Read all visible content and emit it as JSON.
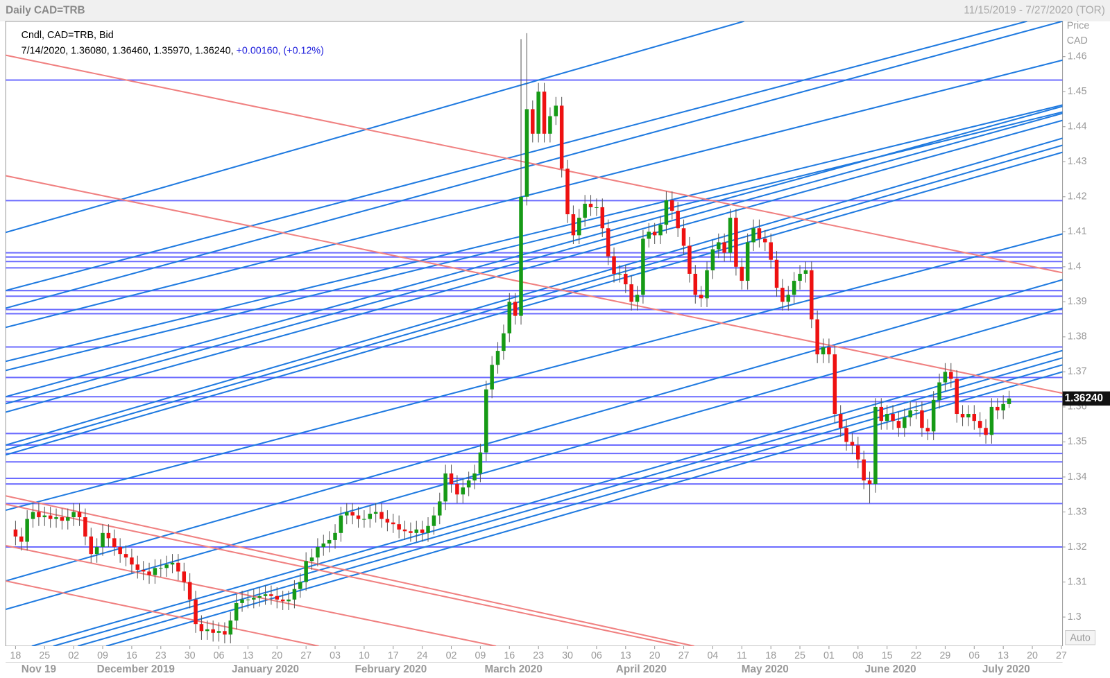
{
  "chart_data": {
    "type": "candlestick",
    "title": "Daily CAD=TRB",
    "date_range": "11/15/2019 - 7/27/2020 (TOR)",
    "info_line1": "Cndl, CAD=TRB, Bid",
    "info_ohlc": "7/14/2020, 1.36080, 1.36460, 1.35970, 1.36240,",
    "info_change": "+0.00160, (+0.12%)",
    "y_axis_title": "Price",
    "y_axis_unit": "CAD",
    "scale_button": "Auto",
    "up_color": "#169a16",
    "down_color": "#ee1111",
    "xlim": [
      -1.7,
      180.2
    ],
    "ylim": [
      1.2917,
      1.4701
    ],
    "yticks": [
      1.3,
      1.31,
      1.32,
      1.33,
      1.34,
      1.35,
      1.36,
      1.37,
      1.38,
      1.39,
      1.4,
      1.41,
      1.42,
      1.43,
      1.44,
      1.45,
      1.46
    ],
    "xticks": [
      {
        "value": 0,
        "label": "18"
      },
      {
        "value": 5,
        "label": "25"
      },
      {
        "value": 10,
        "label": "02"
      },
      {
        "value": 15,
        "label": "09"
      },
      {
        "value": 20,
        "label": "16"
      },
      {
        "value": 25,
        "label": "23"
      },
      {
        "value": 30,
        "label": "30"
      },
      {
        "value": 35,
        "label": "06"
      },
      {
        "value": 40,
        "label": "13"
      },
      {
        "value": 45,
        "label": "20"
      },
      {
        "value": 50,
        "label": "27"
      },
      {
        "value": 55,
        "label": "03"
      },
      {
        "value": 60,
        "label": "10"
      },
      {
        "value": 65,
        "label": "17"
      },
      {
        "value": 70,
        "label": "24"
      },
      {
        "value": 75,
        "label": "02"
      },
      {
        "value": 80,
        "label": "09"
      },
      {
        "value": 85,
        "label": "16"
      },
      {
        "value": 90,
        "label": "23"
      },
      {
        "value": 95,
        "label": "30"
      },
      {
        "value": 100,
        "label": "06"
      },
      {
        "value": 105,
        "label": "13"
      },
      {
        "value": 110,
        "label": "20"
      },
      {
        "value": 115,
        "label": "27"
      },
      {
        "value": 120,
        "label": "04"
      },
      {
        "value": 125,
        "label": "11"
      },
      {
        "value": 130,
        "label": "18"
      },
      {
        "value": 135,
        "label": "25"
      },
      {
        "value": 140,
        "label": "01"
      },
      {
        "value": 145,
        "label": "08"
      },
      {
        "value": 150,
        "label": "15"
      },
      {
        "value": 155,
        "label": "22"
      },
      {
        "value": 160,
        "label": "29"
      },
      {
        "value": 165,
        "label": "06"
      },
      {
        "value": 170,
        "label": "13"
      },
      {
        "value": 175,
        "label": "20"
      },
      {
        "value": 180,
        "label": "27"
      }
    ],
    "month_labels": [
      {
        "value": 4,
        "label": "Nov 19"
      },
      {
        "value": 20.7,
        "label": "December 2019"
      },
      {
        "value": 43,
        "label": "January 2020"
      },
      {
        "value": 64.6,
        "label": "February 2020"
      },
      {
        "value": 85.7,
        "label": "March 2020"
      },
      {
        "value": 107.7,
        "label": "April 2020"
      },
      {
        "value": 129,
        "label": "May 2020"
      },
      {
        "value": 150.6,
        "label": "June 2020"
      },
      {
        "value": 170.5,
        "label": "July 2020"
      }
    ],
    "last_price": {
      "value": 1.3624,
      "label": "1.36240"
    },
    "open": [
      1.325,
      1.323,
      1.3215,
      1.328,
      1.33,
      1.3285,
      1.329,
      1.328,
      1.3285,
      1.3275,
      1.3285,
      1.33,
      1.3285,
      1.323,
      1.318,
      1.32,
      1.324,
      1.3225,
      1.32,
      1.318,
      1.317,
      1.315,
      1.3135,
      1.313,
      1.312,
      1.314,
      1.314,
      1.315,
      1.3155,
      1.313,
      1.31,
      1.305,
      1.298,
      1.296,
      1.2965,
      1.2955,
      1.296,
      1.295,
      1.299,
      1.304,
      1.305,
      1.305,
      1.3055,
      1.306,
      1.3065,
      1.306,
      1.305,
      1.3045,
      1.305,
      1.308,
      1.31,
      1.316,
      1.317,
      1.32,
      1.321,
      1.322,
      1.324,
      1.329,
      1.33,
      1.329,
      1.328,
      1.328,
      1.3295,
      1.33,
      1.328,
      1.327,
      1.3265,
      1.325,
      1.3245,
      1.324,
      1.325,
      1.324,
      1.326,
      1.329,
      1.333,
      1.341,
      1.338,
      1.335,
      1.337,
      1.339,
      1.341,
      1.347,
      1.365,
      1.372,
      1.376,
      1.381,
      1.39,
      1.386,
      1.42,
      1.445,
      1.438,
      1.45,
      1.438,
      1.443,
      1.446,
      1.428,
      1.415,
      1.409,
      1.414,
      1.418,
      1.417,
      1.417,
      1.411,
      1.403,
      1.398,
      1.398,
      1.395,
      1.39,
      1.392,
      1.408,
      1.41,
      1.409,
      1.412,
      1.419,
      1.416,
      1.411,
      1.406,
      1.398,
      1.392,
      1.391,
      1.399,
      1.405,
      1.407,
      1.404,
      1.414,
      1.4,
      1.396,
      1.407,
      1.411,
      1.408,
      1.407,
      1.402,
      1.394,
      1.39,
      1.392,
      1.396,
      1.398,
      1.399,
      1.385,
      1.375,
      1.377,
      1.375,
      1.358,
      1.354,
      1.35,
      1.349,
      1.345,
      1.339,
      1.338,
      1.36,
      1.356,
      1.358,
      1.356,
      1.354,
      1.357,
      1.359,
      1.359,
      1.354,
      1.353,
      1.362,
      1.367,
      1.37,
      1.368,
      1.358,
      1.357,
      1.358,
      1.356,
      1.354,
      1.352,
      1.36,
      1.359,
      1.3608
    ],
    "high": [
      1.3275,
      1.3255,
      1.3305,
      1.3325,
      1.3325,
      1.3315,
      1.3315,
      1.331,
      1.331,
      1.331,
      1.3325,
      1.3325,
      1.331,
      1.3255,
      1.3225,
      1.3265,
      1.3265,
      1.325,
      1.3225,
      1.3205,
      1.3195,
      1.3175,
      1.316,
      1.3155,
      1.3165,
      1.3165,
      1.3175,
      1.318,
      1.318,
      1.3155,
      1.3125,
      1.3075,
      1.3005,
      1.299,
      1.299,
      1.2985,
      1.2985,
      1.3015,
      1.3065,
      1.3075,
      1.3075,
      1.308,
      1.3085,
      1.309,
      1.309,
      1.3085,
      1.3075,
      1.3075,
      1.3105,
      1.3125,
      1.3185,
      1.3195,
      1.3225,
      1.3235,
      1.3245,
      1.3265,
      1.3315,
      1.3325,
      1.3325,
      1.3315,
      1.3305,
      1.332,
      1.3325,
      1.3325,
      1.3305,
      1.3295,
      1.329,
      1.3275,
      1.327,
      1.3275,
      1.3275,
      1.3285,
      1.3315,
      1.3355,
      1.3435,
      1.3435,
      1.3405,
      1.3395,
      1.3415,
      1.3435,
      1.3495,
      1.3675,
      1.3745,
      1.3785,
      1.3835,
      1.3925,
      1.3925,
      1.465,
      1.4667,
      1.4475,
      1.4525,
      1.4525,
      1.4455,
      1.4485,
      1.4485,
      1.4305,
      1.4175,
      1.4165,
      1.4205,
      1.4205,
      1.4195,
      1.4195,
      1.4135,
      1.4055,
      1.4005,
      1.4005,
      1.3975,
      1.3945,
      1.4105,
      1.4125,
      1.4125,
      1.4145,
      1.4215,
      1.4215,
      1.4185,
      1.4135,
      1.4085,
      1.4005,
      1.3945,
      1.4015,
      1.4075,
      1.4095,
      1.4095,
      1.4165,
      1.4165,
      1.4025,
      1.4095,
      1.4135,
      1.4135,
      1.4105,
      1.4095,
      1.4045,
      1.3965,
      1.3945,
      1.3985,
      1.4005,
      1.4015,
      1.4015,
      1.3875,
      1.3795,
      1.3795,
      1.3775,
      1.3605,
      1.3565,
      1.3525,
      1.3515,
      1.3475,
      1.3415,
      1.3625,
      1.3625,
      1.3605,
      1.3605,
      1.3585,
      1.3595,
      1.3615,
      1.3615,
      1.3615,
      1.3565,
      1.3645,
      1.3695,
      1.3725,
      1.3725,
      1.3705,
      1.3605,
      1.3605,
      1.3605,
      1.3585,
      1.3565,
      1.3625,
      1.3625,
      1.3633,
      1.3646
    ],
    "low": [
      1.3205,
      1.319,
      1.319,
      1.3255,
      1.326,
      1.326,
      1.3255,
      1.3255,
      1.325,
      1.325,
      1.326,
      1.326,
      1.3205,
      1.3155,
      1.3155,
      1.3175,
      1.32,
      1.3175,
      1.3155,
      1.3145,
      1.3125,
      1.311,
      1.3105,
      1.3095,
      1.3095,
      1.3115,
      1.3115,
      1.3125,
      1.3105,
      1.3075,
      1.3025,
      1.2955,
      1.2935,
      1.2935,
      1.293,
      1.293,
      1.2925,
      1.2925,
      1.2965,
      1.3015,
      1.3025,
      1.3025,
      1.303,
      1.3035,
      1.3035,
      1.3025,
      1.302,
      1.302,
      1.3025,
      1.3055,
      1.3075,
      1.3135,
      1.3145,
      1.3175,
      1.3185,
      1.3195,
      1.3215,
      1.3265,
      1.3265,
      1.3255,
      1.3255,
      1.3255,
      1.327,
      1.3255,
      1.3245,
      1.324,
      1.3225,
      1.322,
      1.3215,
      1.3215,
      1.3215,
      1.3215,
      1.3235,
      1.3265,
      1.3305,
      1.3355,
      1.3325,
      1.3325,
      1.3345,
      1.3365,
      1.3385,
      1.3445,
      1.3625,
      1.3695,
      1.3735,
      1.3785,
      1.3835,
      1.3835,
      1.4175,
      1.4355,
      1.4355,
      1.4355,
      1.4355,
      1.4405,
      1.4255,
      1.4125,
      1.4065,
      1.4065,
      1.4115,
      1.4145,
      1.4145,
      1.4085,
      1.4005,
      1.3955,
      1.3955,
      1.3925,
      1.3875,
      1.3875,
      1.3895,
      1.4055,
      1.4065,
      1.4065,
      1.4095,
      1.4135,
      1.4085,
      1.4035,
      1.3955,
      1.3895,
      1.3885,
      1.3885,
      1.3965,
      1.4025,
      1.4015,
      1.4015,
      1.3975,
      1.3935,
      1.3935,
      1.4045,
      1.4055,
      1.4045,
      1.3995,
      1.3915,
      1.3875,
      1.3875,
      1.3895,
      1.3935,
      1.3955,
      1.3825,
      1.3725,
      1.3725,
      1.3725,
      1.3555,
      1.3515,
      1.3475,
      1.3465,
      1.3425,
      1.3365,
      1.3325,
      1.3355,
      1.3535,
      1.3535,
      1.3535,
      1.3515,
      1.3515,
      1.3545,
      1.3565,
      1.3515,
      1.3505,
      1.3505,
      1.3595,
      1.3645,
      1.3655,
      1.3555,
      1.3545,
      1.3545,
      1.3535,
      1.3515,
      1.3495,
      1.3495,
      1.3565,
      1.3565,
      1.3597
    ],
    "close": [
      1.323,
      1.3215,
      1.328,
      1.33,
      1.3285,
      1.329,
      1.328,
      1.3285,
      1.3275,
      1.3285,
      1.33,
      1.3285,
      1.323,
      1.318,
      1.32,
      1.324,
      1.3225,
      1.32,
      1.318,
      1.317,
      1.315,
      1.3135,
      1.313,
      1.312,
      1.314,
      1.314,
      1.315,
      1.3155,
      1.313,
      1.31,
      1.305,
      1.298,
      1.296,
      1.2965,
      1.2955,
      1.296,
      1.295,
      1.299,
      1.304,
      1.305,
      1.305,
      1.3055,
      1.306,
      1.3065,
      1.306,
      1.305,
      1.3045,
      1.305,
      1.308,
      1.31,
      1.316,
      1.317,
      1.32,
      1.321,
      1.322,
      1.324,
      1.329,
      1.33,
      1.329,
      1.328,
      1.328,
      1.3295,
      1.33,
      1.328,
      1.327,
      1.3265,
      1.325,
      1.3245,
      1.324,
      1.325,
      1.324,
      1.326,
      1.329,
      1.333,
      1.341,
      1.338,
      1.335,
      1.337,
      1.339,
      1.341,
      1.347,
      1.365,
      1.372,
      1.376,
      1.381,
      1.39,
      1.386,
      1.42,
      1.445,
      1.438,
      1.45,
      1.438,
      1.443,
      1.446,
      1.428,
      1.415,
      1.409,
      1.414,
      1.418,
      1.417,
      1.417,
      1.411,
      1.403,
      1.398,
      1.398,
      1.395,
      1.39,
      1.392,
      1.408,
      1.41,
      1.409,
      1.412,
      1.419,
      1.416,
      1.411,
      1.406,
      1.398,
      1.392,
      1.391,
      1.399,
      1.405,
      1.407,
      1.404,
      1.414,
      1.4,
      1.396,
      1.407,
      1.411,
      1.408,
      1.407,
      1.402,
      1.394,
      1.39,
      1.392,
      1.396,
      1.398,
      1.399,
      1.385,
      1.375,
      1.377,
      1.375,
      1.358,
      1.354,
      1.35,
      1.349,
      1.345,
      1.339,
      1.338,
      1.36,
      1.356,
      1.358,
      1.356,
      1.354,
      1.357,
      1.359,
      1.359,
      1.354,
      1.353,
      1.362,
      1.367,
      1.37,
      1.368,
      1.358,
      1.357,
      1.358,
      1.356,
      1.354,
      1.352,
      1.36,
      1.359,
      1.3608,
      1.3624
    ],
    "hline_color": "#6b6bff",
    "hlines": [
      1.4533,
      1.4189,
      1.404,
      1.4028,
      1.4015,
      1.3997,
      1.3932,
      1.3916,
      1.3878,
      1.3866,
      1.3771,
      1.3684,
      1.3629,
      1.3615,
      1.3524,
      1.3491,
      1.3467,
      1.3443,
      1.3396,
      1.338,
      1.3324,
      1.32
    ],
    "trend_lines": [
      {
        "color": "#1f7ae0",
        "x": [
          -1.7,
          125.4
        ],
        "y": [
          1.4098,
          1.4701
        ]
      },
      {
        "color": "#1f7ae0",
        "x": [
          -1.7,
          174.1
        ],
        "y": [
          1.3932,
          1.4701
        ]
      },
      {
        "color": "#1f7ae0",
        "x": [
          -1.7,
          180.2
        ],
        "y": [
          1.3882,
          1.4701
        ]
      },
      {
        "color": "#1f7ae0",
        "x": [
          -1.7,
          180.2
        ],
        "y": [
          1.3827,
          1.459
        ]
      },
      {
        "color": "#1f7ae0",
        "x": [
          -1.7,
          180.2
        ],
        "y": [
          1.373,
          1.4462
        ]
      },
      {
        "color": "#1f7ae0",
        "x": [
          -1.7,
          180.2
        ],
        "y": [
          1.3704,
          1.4442
        ]
      },
      {
        "color": "#1f7ae0",
        "x": [
          -1.7,
          180.2
        ],
        "y": [
          1.3629,
          1.4458
        ]
      },
      {
        "color": "#1f7ae0",
        "x": [
          -1.7,
          180.2
        ],
        "y": [
          1.3609,
          1.4438
        ]
      },
      {
        "color": "#1f7ae0",
        "x": [
          -1.7,
          180.2
        ],
        "y": [
          1.3585,
          1.4418
        ]
      },
      {
        "color": "#1f7ae0",
        "x": [
          -1.7,
          180.2
        ],
        "y": [
          1.3491,
          1.4367
        ]
      },
      {
        "color": "#1f7ae0",
        "x": [
          -1.7,
          180.2
        ],
        "y": [
          1.3477,
          1.4347
        ]
      },
      {
        "color": "#1f7ae0",
        "x": [
          -1.7,
          180.2
        ],
        "y": [
          1.3463,
          1.4327
        ]
      },
      {
        "color": "#1f7ae0",
        "x": [
          -1.7,
          180.2
        ],
        "y": [
          1.3305,
          1.4094
        ]
      },
      {
        "color": "#1f7ae0",
        "x": [
          -1.7,
          180.2
        ],
        "y": [
          1.3103,
          1.3963
        ]
      },
      {
        "color": "#1f7ae0",
        "x": [
          -1.7,
          180.2
        ],
        "y": [
          1.3022,
          1.3882
        ]
      },
      {
        "color": "#1f7ae0",
        "x": [
          2.8,
          180.2
        ],
        "y": [
          1.2917,
          1.3761
        ]
      },
      {
        "color": "#1f7ae0",
        "x": [
          6.5,
          180.2
        ],
        "y": [
          1.2917,
          1.374
        ]
      },
      {
        "color": "#1f7ae0",
        "x": [
          10.7,
          180.2
        ],
        "y": [
          1.2917,
          1.372
        ]
      },
      {
        "color": "#1f7ae0",
        "x": [
          15.6,
          180.2
        ],
        "y": [
          1.2917,
          1.37
        ]
      },
      {
        "color": "#f08080",
        "x": [
          -1.7,
          180.2
        ],
        "y": [
          1.4604,
          1.3983
        ]
      },
      {
        "color": "#f08080",
        "x": [
          -1.7,
          180.2
        ],
        "y": [
          1.426,
          1.3639
        ]
      },
      {
        "color": "#f08080",
        "x": [
          -1.7,
          116.8
        ],
        "y": [
          1.3346,
          1.2917
        ]
      },
      {
        "color": "#f08080",
        "x": [
          -1.7,
          114.4
        ],
        "y": [
          1.3322,
          1.2917
        ]
      },
      {
        "color": "#f08080",
        "x": [
          -1.7,
          82.7
        ],
        "y": [
          1.3204,
          1.2917
        ]
      },
      {
        "color": "#f08080",
        "x": [
          -1.7,
          52.2
        ],
        "y": [
          1.3103,
          1.2917
        ]
      }
    ]
  }
}
